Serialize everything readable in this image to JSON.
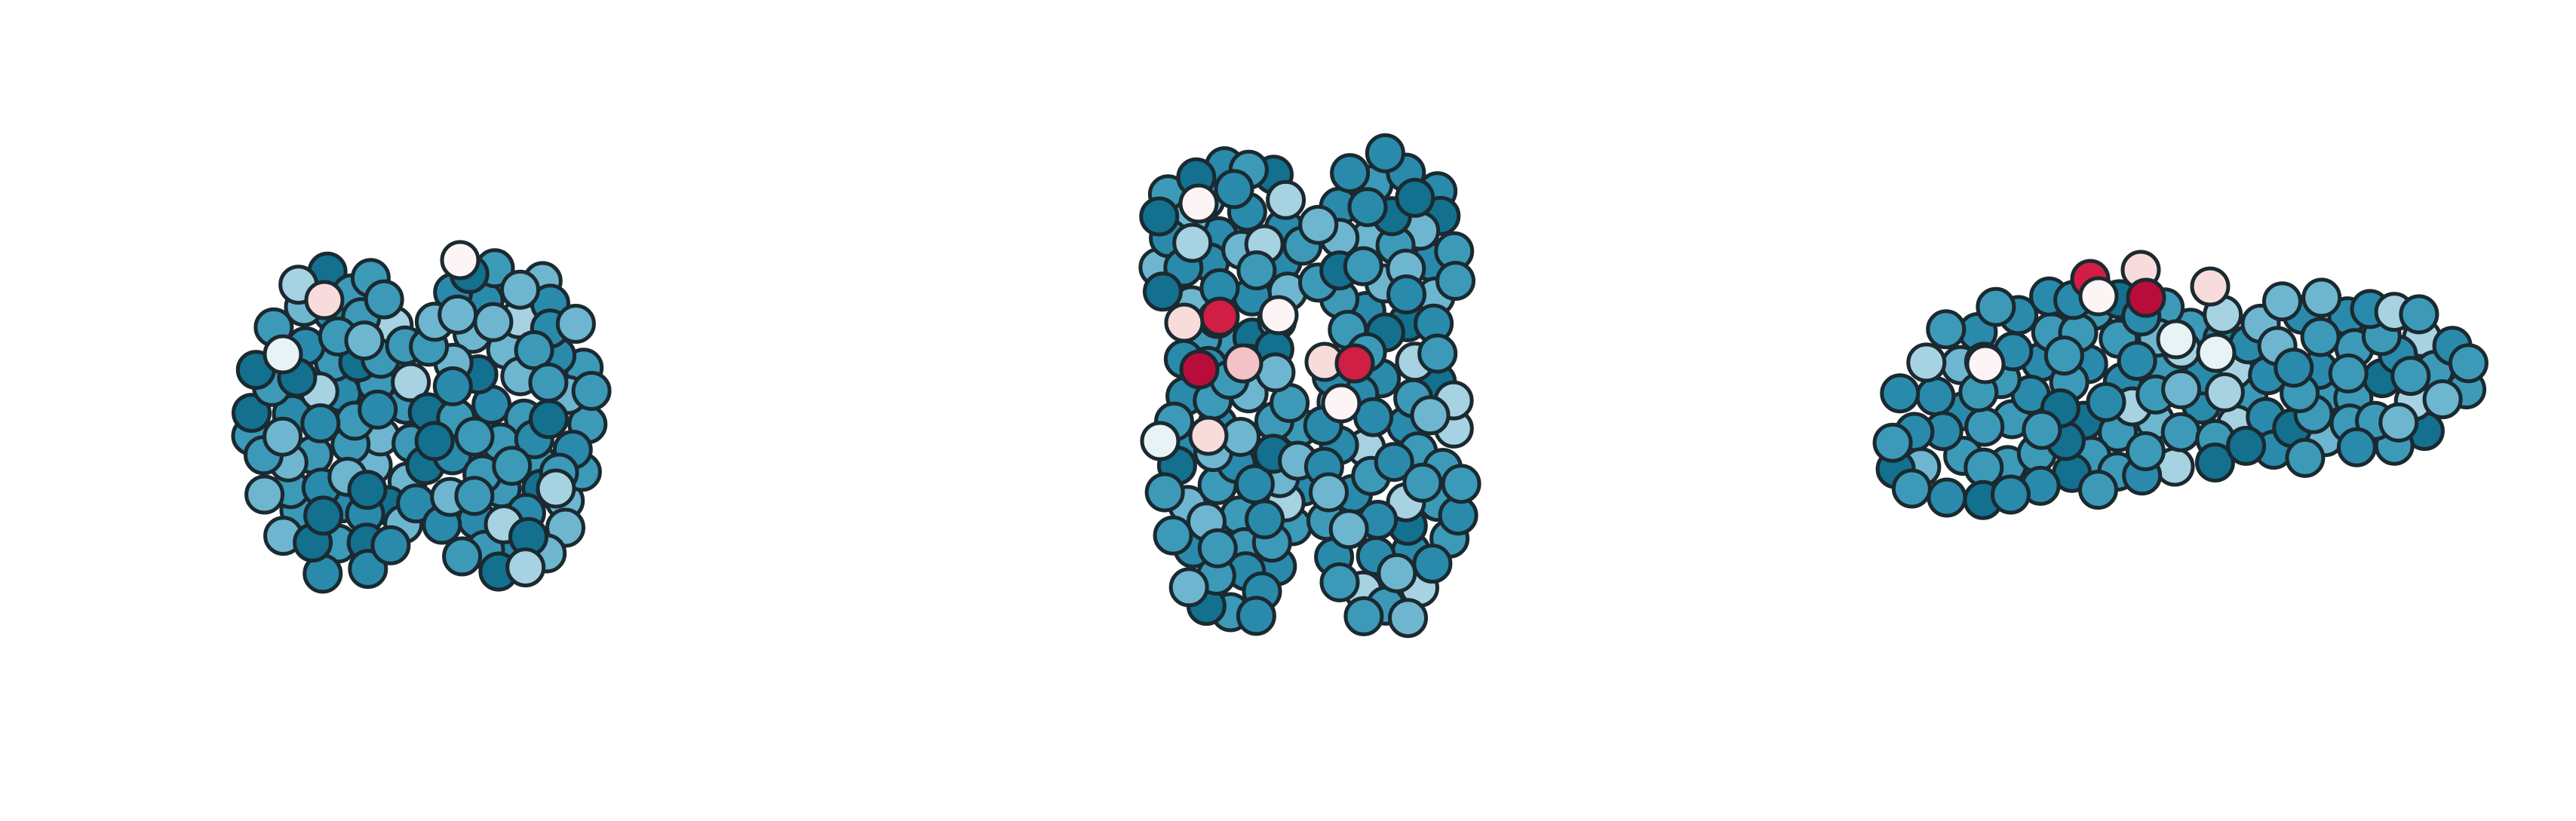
{
  "figure": {
    "kind": "brain node plot (glass brain, three projections)",
    "background": "#ffffff",
    "node_outline_color": "#1a2a30",
    "palette": {
      "teal_dark": "#13708f",
      "teal": "#2a8aab",
      "teal_mid": "#3c9ab8",
      "teal_light": "#6eb6cf",
      "blue_pale": "#a7d2e2",
      "near_white": "#e8f3f6",
      "white": "#fdf5f5",
      "pink_pale": "#f8dcdc",
      "pink": "#f2c2c6",
      "red": "#d11e45",
      "crimson": "#b80d3a"
    },
    "views": [
      {
        "id": "coronal",
        "icon": "coronal-view-brain-icon"
      },
      {
        "id": "axial",
        "icon": "axial-view-brain-icon"
      },
      {
        "id": "sagittal",
        "icon": "sagittal-view-brain-icon"
      }
    ]
  }
}
